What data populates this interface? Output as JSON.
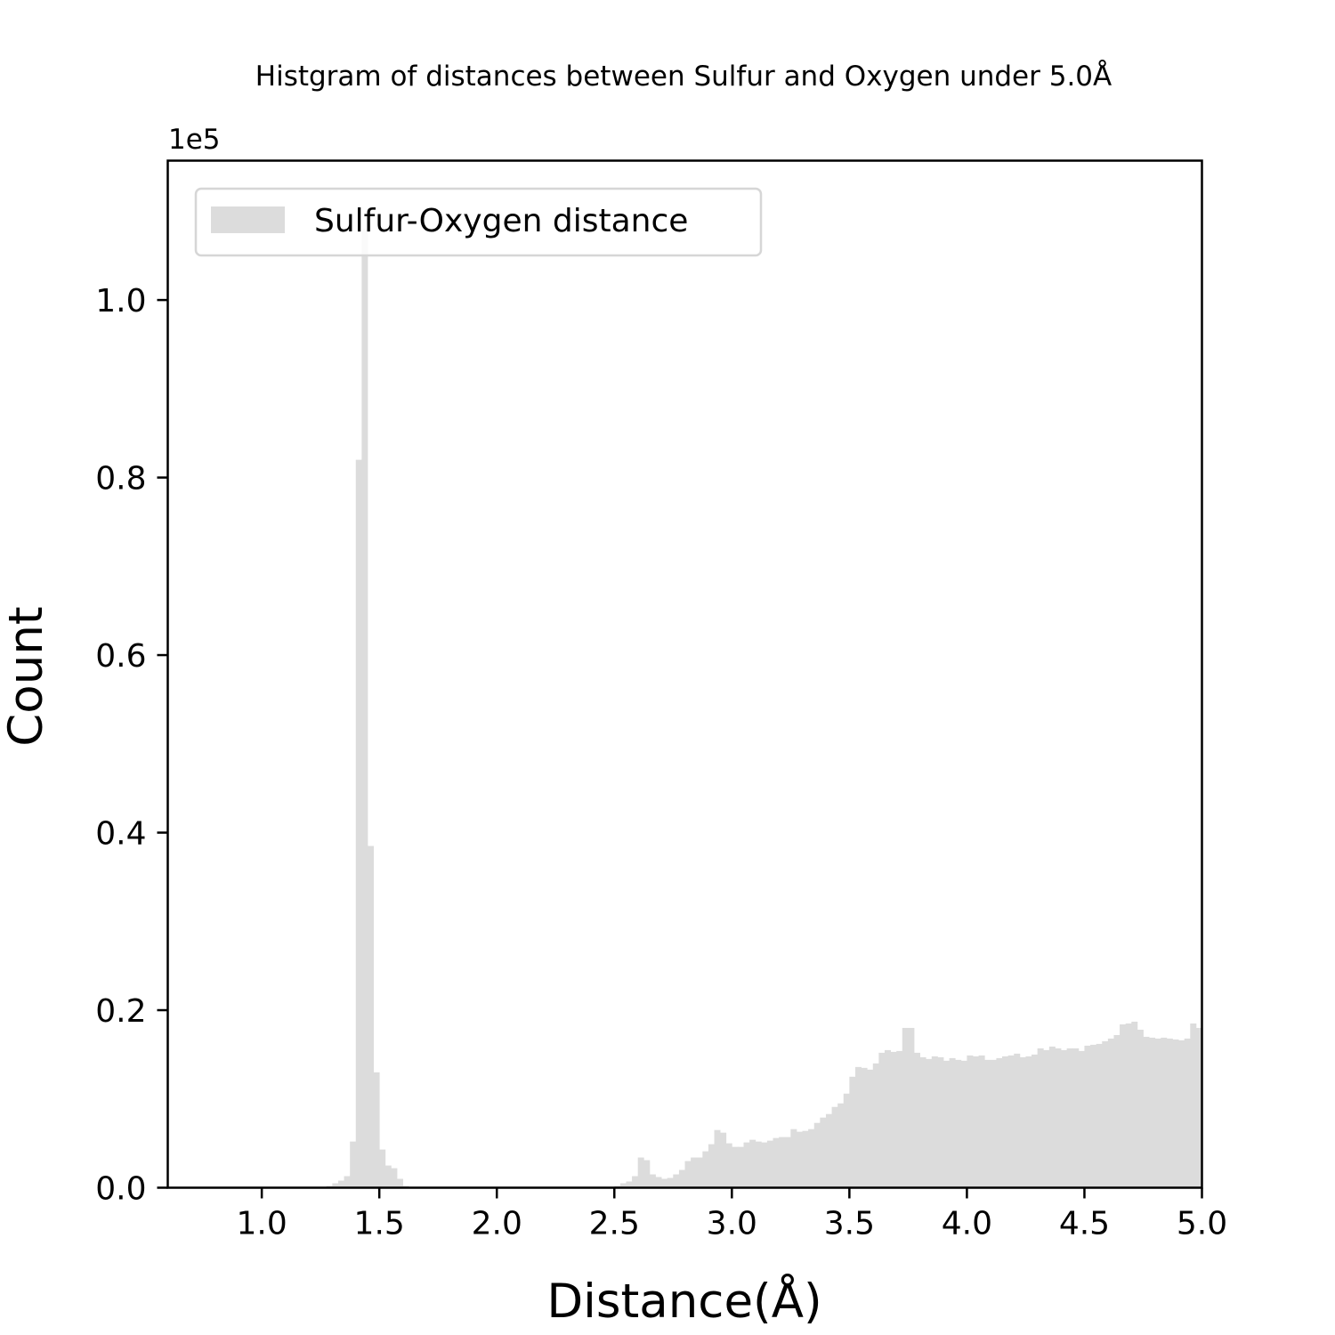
{
  "chart_data": {
    "type": "bar",
    "title": "Histgram of distances between Sulfur and Oxygen under 5.0Å",
    "xlabel": "Distance(Å)",
    "ylabel": "Count",
    "y_offset_label": "1e5",
    "xlim": [
      0.6,
      5.0
    ],
    "ylim": [
      0,
      115700
    ],
    "x_ticks": [
      1.0,
      1.5,
      2.0,
      2.5,
      3.0,
      3.5,
      4.0,
      4.5,
      5.0
    ],
    "x_tick_labels": [
      "1.0",
      "1.5",
      "2.0",
      "2.5",
      "3.0",
      "3.5",
      "4.0",
      "4.5",
      "5.0"
    ],
    "y_ticks": [
      0,
      20000,
      40000,
      60000,
      80000,
      100000
    ],
    "y_tick_labels": [
      "0.0",
      "0.2",
      "0.4",
      "0.6",
      "0.8",
      "1.0"
    ],
    "legend": {
      "position": "top-left",
      "entries": [
        "Sulfur-Oxygen distance"
      ]
    },
    "grid": false,
    "bar_color": "#dcdcdc",
    "bin_width": 0.025,
    "series": [
      {
        "name": "Sulfur-Oxygen distance",
        "bin_left_edges": [
          1.275,
          1.3,
          1.325,
          1.35,
          1.375,
          1.4,
          1.425,
          1.45,
          1.475,
          1.5,
          1.525,
          1.55,
          1.575,
          1.6,
          1.625,
          1.65,
          2.475,
          2.5,
          2.525,
          2.55,
          2.575,
          2.6,
          2.625,
          2.65,
          2.675,
          2.7,
          2.725,
          2.75,
          2.775,
          2.8,
          2.825,
          2.85,
          2.875,
          2.9,
          2.925,
          2.95,
          2.975,
          3.0,
          3.025,
          3.05,
          3.075,
          3.1,
          3.125,
          3.15,
          3.175,
          3.2,
          3.225,
          3.25,
          3.275,
          3.3,
          3.325,
          3.35,
          3.375,
          3.4,
          3.425,
          3.45,
          3.475,
          3.5,
          3.525,
          3.55,
          3.575,
          3.6,
          3.625,
          3.65,
          3.675,
          3.7,
          3.725,
          3.75,
          3.775,
          3.8,
          3.825,
          3.85,
          3.875,
          3.9,
          3.925,
          3.95,
          3.975,
          4.0,
          4.025,
          4.05,
          4.075,
          4.1,
          4.125,
          4.15,
          4.175,
          4.2,
          4.225,
          4.25,
          4.275,
          4.3,
          4.325,
          4.35,
          4.375,
          4.4,
          4.425,
          4.45,
          4.475,
          4.5,
          4.525,
          4.55,
          4.575,
          4.6,
          4.625,
          4.65,
          4.675,
          4.7,
          4.725,
          4.75,
          4.775,
          4.8,
          4.825,
          4.85,
          4.875,
          4.9,
          4.925,
          4.95,
          4.975
        ],
        "values": [
          200,
          500,
          800,
          1300,
          5200,
          82000,
          108000,
          38500,
          13000,
          4300,
          2500,
          2200,
          1000,
          200,
          100,
          50,
          100,
          200,
          500,
          700,
          1300,
          3400,
          3100,
          1500,
          1200,
          1000,
          1100,
          1500,
          2000,
          3000,
          3400,
          3400,
          4100,
          4900,
          6500,
          6200,
          5000,
          4600,
          4600,
          5100,
          5400,
          5200,
          5100,
          5300,
          5600,
          5700,
          5700,
          6600,
          6300,
          6400,
          6600,
          7300,
          7900,
          8300,
          9100,
          9500,
          10600,
          12500,
          13600,
          13500,
          13300,
          14000,
          15200,
          15500,
          15300,
          15400,
          18000,
          18000,
          15200,
          14700,
          14500,
          14800,
          14700,
          14300,
          14600,
          14400,
          14300,
          14900,
          14800,
          14900,
          14400,
          14400,
          14600,
          14800,
          14900,
          15100,
          14700,
          14800,
          15000,
          15700,
          15500,
          15900,
          15700,
          15500,
          15700,
          15700,
          15400,
          16000,
          16100,
          16200,
          16500,
          16800,
          17200,
          18400,
          18500,
          18700,
          17800,
          17000,
          16900,
          16800,
          16900,
          16800,
          16700,
          16600,
          16800,
          18500,
          18000
        ]
      }
    ]
  }
}
